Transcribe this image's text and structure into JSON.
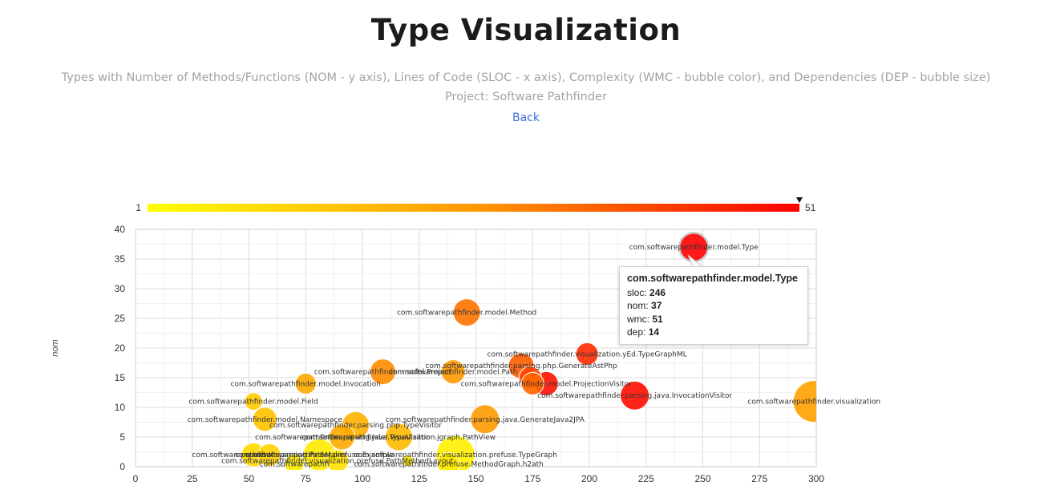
{
  "page": {
    "title": "Type Visualization",
    "subtitle_line1": "Types with Number of Methods/Functions (NOM - y axis), Lines of Code (SLOC - x axis), Complexity (WMC - bubble color), and Dependencies (DEP - bubble size)",
    "subtitle_line2": "Project: Software Pathfinder",
    "back_label": "Back"
  },
  "colors": {
    "low": "#ffff00",
    "mid": "#ff9900",
    "high": "#ff0000",
    "grid": "#e3e3e3"
  },
  "tooltip": {
    "title": "com.softwarepathfinder.model.Type",
    "sloc_label": "sloc:",
    "sloc": "246",
    "nom_label": "nom:",
    "nom": "37",
    "wmc_label": "wmc:",
    "wmc": "51",
    "dep_label": "dep:",
    "dep": "14"
  },
  "chart_data": {
    "type": "scatter",
    "xlabel": "",
    "ylabel": "nom",
    "xlim": [
      0,
      300
    ],
    "ylim": [
      0,
      40
    ],
    "xticks": [
      0,
      25,
      50,
      75,
      100,
      125,
      150,
      175,
      200,
      225,
      250,
      275,
      300
    ],
    "yticks": [
      0,
      5,
      10,
      15,
      20,
      25,
      30,
      35,
      40
    ],
    "grid": true,
    "colorscale": {
      "min": 1,
      "max": 51,
      "min_label": "1",
      "max_label": "51"
    },
    "points": [
      {
        "x": 246,
        "y": 37,
        "wmc": 51,
        "dep": 14,
        "label": "com.softwarepathfinder.model.Type"
      },
      {
        "x": 146,
        "y": 26,
        "wmc": 32,
        "dep": 13,
        "label": "com.softwarepathfinder.model.Method"
      },
      {
        "x": 199,
        "y": 19,
        "wmc": 44,
        "dep": 10,
        "label": "com.softwarepathfinder.visualization.yEd.TypeGraphML"
      },
      {
        "x": 170,
        "y": 17,
        "wmc": 36,
        "dep": 12,
        "label": "com.softwarepathfinder.parsing.php.GenerateAstPhp"
      },
      {
        "x": 109,
        "y": 16,
        "wmc": 28,
        "dep": 12,
        "label": "com.softwarepathfinder.model.Project"
      },
      {
        "x": 140,
        "y": 16,
        "wmc": 26,
        "dep": 11,
        "label": "com.softwarepathfinder.model.Path"
      },
      {
        "x": 174,
        "y": 15,
        "wmc": 40,
        "dep": 10,
        "label": ""
      },
      {
        "x": 181,
        "y": 14,
        "wmc": 48,
        "dep": 11,
        "label": "com.softwarepathfinder.model.ProjectionVisitor"
      },
      {
        "x": 175,
        "y": 14,
        "wmc": 34,
        "dep": 10,
        "label": ""
      },
      {
        "x": 75,
        "y": 14,
        "wmc": 22,
        "dep": 9,
        "label": "com.softwarepathfinder.model.Invocation"
      },
      {
        "x": 52,
        "y": 11,
        "wmc": 14,
        "dep": 7,
        "label": "com.softwarepathfinder.model.Field"
      },
      {
        "x": 220,
        "y": 12,
        "wmc": 49,
        "dep": 14,
        "label": "com.softwarepathfinder.parsing.java.InvocationVisitor"
      },
      {
        "x": 299,
        "y": 11,
        "wmc": 24,
        "dep": 22,
        "label": "com.softwarepathfinder.visualization"
      },
      {
        "x": 57,
        "y": 8,
        "wmc": 16,
        "dep": 11,
        "label": "com.softwarepathfinder.model.Namespace"
      },
      {
        "x": 97,
        "y": 7,
        "wmc": 20,
        "dep": 13,
        "label": "com.softwarepathfinder.parsing.php.TypeVisitor"
      },
      {
        "x": 154,
        "y": 8,
        "wmc": 26,
        "dep": 14,
        "label": "com.softwarepathfinder.parsing.java.GenerateJava2JPA"
      },
      {
        "x": 91,
        "y": 5,
        "wmc": 22,
        "dep": 12,
        "label": "com.softwarepathfinder.parsing.java.TypeVisitor"
      },
      {
        "x": 116,
        "y": 5,
        "wmc": 18,
        "dep": 13,
        "label": "com.softwarepathfinder.visualization.jgraph.PathView"
      },
      {
        "x": 52,
        "y": 2,
        "wmc": 10,
        "dep": 11,
        "label": "com.softw"
      },
      {
        "x": 59,
        "y": 2,
        "wmc": 12,
        "dep": 10,
        "label": "com.softwarepathfinder.parsing.PathMaker"
      },
      {
        "x": 81,
        "y": 2,
        "wmc": 6,
        "dep": 16,
        "label": "com.softwarepathfinder.prefuse.Example"
      },
      {
        "x": 141,
        "y": 2,
        "wmc": 5,
        "dep": 20,
        "label": "com.softwarepathfinder.visualization.prefuse.TypeGraph"
      },
      {
        "x": 89,
        "y": 1,
        "wmc": 8,
        "dep": 10,
        "label": "com.softwarepathfinder.visualization.prefuse.PathMethodLayout"
      },
      {
        "x": 120,
        "y": 1,
        "wmc": 7,
        "dep": 3,
        "label": ""
      },
      {
        "x": 70,
        "y": 0.5,
        "wmc": 6,
        "dep": 8,
        "label": "com.softwarepathfi"
      },
      {
        "x": 138,
        "y": 0.5,
        "wmc": 6,
        "dep": 10,
        "label": "com.softwarepathfinder.prefuse.MethodGraph.h2ath"
      }
    ]
  }
}
